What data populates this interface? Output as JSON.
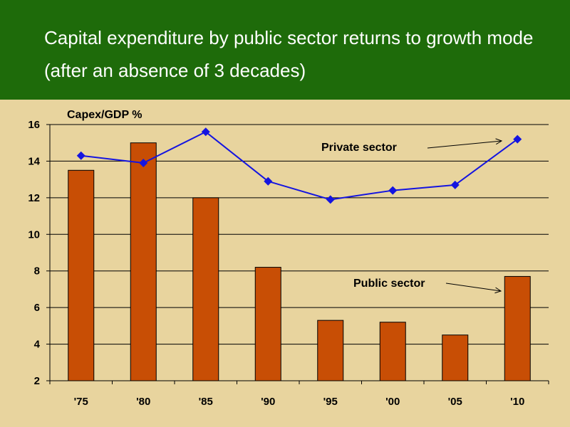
{
  "slide": {
    "title": "Capital expenditure by public sector returns to growth mode (after an absence of 3 decades)"
  },
  "colors": {
    "title_bar": "#1e6b0a",
    "background": "#e8d49e",
    "bar": "#c84e05",
    "line": "#1414e0"
  },
  "chart_data": {
    "type": "bar",
    "ylabel": "Capex/GDP %",
    "ylim": [
      2,
      16
    ],
    "yticks": [
      2,
      4,
      6,
      8,
      10,
      12,
      14,
      16
    ],
    "categories": [
      "'75",
      "'80",
      "'85",
      "'90",
      "'95",
      "'00",
      "'05",
      "'10"
    ],
    "grid": true,
    "series": [
      {
        "name": "Public sector",
        "type": "bar",
        "values": [
          13.5,
          15.0,
          12.0,
          8.2,
          5.3,
          5.2,
          4.5,
          7.7
        ]
      },
      {
        "name": "Private sector",
        "type": "line",
        "values": [
          14.3,
          13.9,
          15.6,
          12.9,
          11.9,
          12.4,
          12.7,
          15.2
        ]
      }
    ],
    "annotations": [
      {
        "text": "Private sector",
        "points_to": "'10"
      },
      {
        "text": "Public sector",
        "points_to": "'10"
      }
    ]
  }
}
